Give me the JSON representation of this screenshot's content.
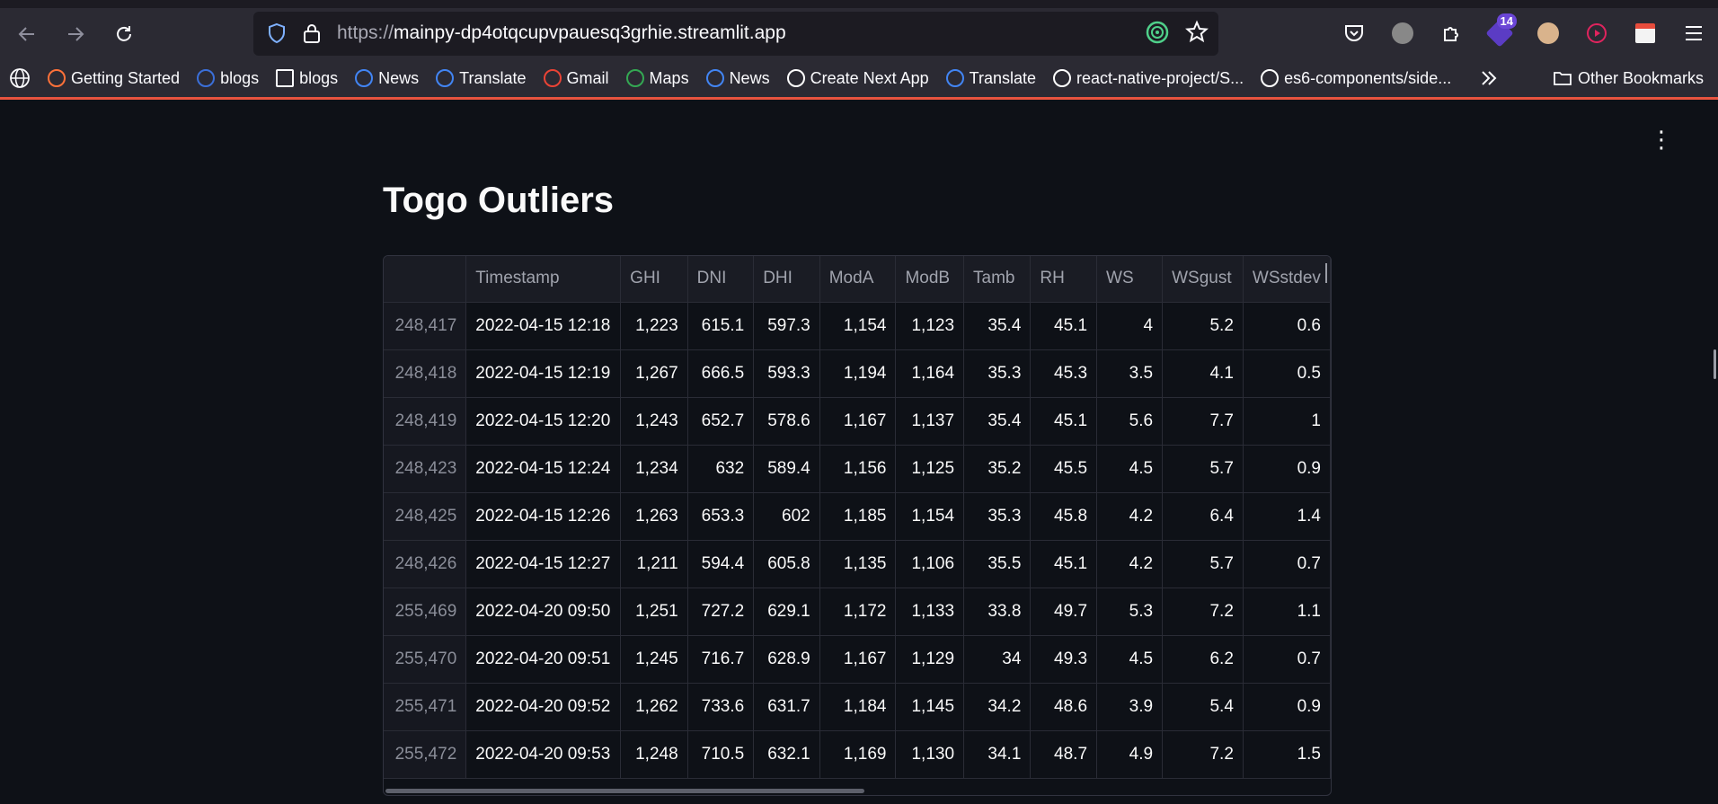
{
  "browser": {
    "url_protocol": "https://",
    "url_host": "mainpy-dp4otqcupvpauesq3grhie.streamlit.app",
    "extension_badge": "14",
    "bookmarks": [
      {
        "label": "Getting Started",
        "icon": "firefox-icon",
        "color": "#ff7139"
      },
      {
        "label": "blogs",
        "icon": "blogs-favicon",
        "color": "#3b6fd9"
      },
      {
        "label": "blogs",
        "icon": "folder-icon",
        "color": "#fbfbfe"
      },
      {
        "label": "News",
        "icon": "google-news-icon",
        "color": "#4285f4"
      },
      {
        "label": "Translate",
        "icon": "google-translate-icon",
        "color": "#4285f4"
      },
      {
        "label": "Gmail",
        "icon": "gmail-icon",
        "color": "#ea4335"
      },
      {
        "label": "Maps",
        "icon": "google-maps-icon",
        "color": "#34a853"
      },
      {
        "label": "News",
        "icon": "google-news-icon",
        "color": "#4285f4"
      },
      {
        "label": "Create Next App",
        "icon": "vercel-icon",
        "color": "#ffffff"
      },
      {
        "label": "Translate",
        "icon": "google-translate-icon",
        "color": "#4285f4"
      },
      {
        "label": "react-native-project/S...",
        "icon": "github-icon",
        "color": "#ffffff"
      },
      {
        "label": "es6-components/side...",
        "icon": "github-icon",
        "color": "#ffffff"
      }
    ],
    "other_bookmarks": "Other Bookmarks"
  },
  "app": {
    "title": "Togo Outliers",
    "table": {
      "columns": [
        "",
        "Timestamp",
        "GHI",
        "DNI",
        "DHI",
        "ModA",
        "ModB",
        "Tamb",
        "RH",
        "WS",
        "WSgust",
        "WSstdev"
      ],
      "rows": [
        [
          "248,417",
          "2022-04-15 12:18",
          "1,223",
          "615.1",
          "597.3",
          "1,154",
          "1,123",
          "35.4",
          "45.1",
          "4",
          "5.2",
          "0.6"
        ],
        [
          "248,418",
          "2022-04-15 12:19",
          "1,267",
          "666.5",
          "593.3",
          "1,194",
          "1,164",
          "35.3",
          "45.3",
          "3.5",
          "4.1",
          "0.5"
        ],
        [
          "248,419",
          "2022-04-15 12:20",
          "1,243",
          "652.7",
          "578.6",
          "1,167",
          "1,137",
          "35.4",
          "45.1",
          "5.6",
          "7.7",
          "1"
        ],
        [
          "248,423",
          "2022-04-15 12:24",
          "1,234",
          "632",
          "589.4",
          "1,156",
          "1,125",
          "35.2",
          "45.5",
          "4.5",
          "5.7",
          "0.9"
        ],
        [
          "248,425",
          "2022-04-15 12:26",
          "1,263",
          "653.3",
          "602",
          "1,185",
          "1,154",
          "35.3",
          "45.8",
          "4.2",
          "6.4",
          "1.4"
        ],
        [
          "248,426",
          "2022-04-15 12:27",
          "1,211",
          "594.4",
          "605.8",
          "1,135",
          "1,106",
          "35.5",
          "45.1",
          "4.2",
          "5.7",
          "0.7"
        ],
        [
          "255,469",
          "2022-04-20 09:50",
          "1,251",
          "727.2",
          "629.1",
          "1,172",
          "1,133",
          "33.8",
          "49.7",
          "5.3",
          "7.2",
          "1.1"
        ],
        [
          "255,470",
          "2022-04-20 09:51",
          "1,245",
          "716.7",
          "628.9",
          "1,167",
          "1,129",
          "34",
          "49.3",
          "4.5",
          "6.2",
          "0.7"
        ],
        [
          "255,471",
          "2022-04-20 09:52",
          "1,262",
          "733.6",
          "631.7",
          "1,184",
          "1,145",
          "34.2",
          "48.6",
          "3.9",
          "5.4",
          "0.9"
        ],
        [
          "255,472",
          "2022-04-20 09:53",
          "1,248",
          "710.5",
          "632.1",
          "1,169",
          "1,130",
          "34.1",
          "48.7",
          "4.9",
          "7.2",
          "1.5"
        ]
      ]
    }
  }
}
